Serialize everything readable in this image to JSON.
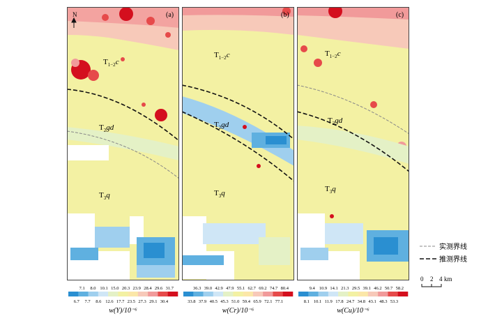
{
  "north_label": "N",
  "panels": [
    {
      "letter": "(a)",
      "units": [
        "T",
        "1−2",
        "c",
        "T",
        "2",
        "gd",
        "T",
        "3",
        "q"
      ],
      "scale": {
        "upper": [
          "7.1",
          "8.0",
          "10.1",
          "15.0",
          "20.3",
          "23.9",
          "28.4",
          "29.6",
          "31.7"
        ],
        "lower": [
          "6.7",
          "7.7",
          "8.6",
          "12.6",
          "17.7",
          "23.5",
          "27.3",
          "29.1",
          "30.4"
        ],
        "title": "w(Y)/10⁻⁶"
      }
    },
    {
      "letter": "(b)",
      "units": [
        "T",
        "1−2",
        "c",
        "T",
        "2",
        "gd",
        "T",
        "3",
        "q"
      ],
      "scale": {
        "upper": [
          "36.3",
          "39.0",
          "42.9",
          "47.9",
          "55.1",
          "62.7",
          "69.2",
          "74.7",
          "80.4"
        ],
        "lower": [
          "33.8",
          "37.9",
          "40.5",
          "45.3",
          "51.0",
          "59.4",
          "65.9",
          "72.1",
          "77.1"
        ],
        "title": "w(Cr)/10⁻⁶"
      }
    },
    {
      "letter": "(c)",
      "units": [
        "T",
        "1−2",
        "c",
        "T",
        "2",
        "gd",
        "T",
        "3",
        "q"
      ],
      "scale": {
        "upper": [
          "9.4",
          "10.9",
          "14.1",
          "21.3",
          "29.5",
          "39.1",
          "46.2",
          "50.7",
          "58.2"
        ],
        "lower": [
          "8.1",
          "10.1",
          "11.9",
          "17.8",
          "24.7",
          "34.8",
          "43.1",
          "48.3",
          "53.3"
        ],
        "title": "w(Cu)/10⁻⁶"
      }
    }
  ],
  "legend": {
    "measured": "实测界线",
    "inferred": "推测界线"
  },
  "scalebar": {
    "ticks": [
      "0",
      "2",
      "4"
    ],
    "unit": "km"
  },
  "colors": {
    "ramp": [
      "#2a8fd1",
      "#5fb0e0",
      "#9fcfee",
      "#cfe6f6",
      "#e4f1c6",
      "#f3f1a3",
      "#fbe7a8",
      "#f7c9b9",
      "#f19a9a",
      "#e64a4a",
      "#d40f1e"
    ]
  }
}
